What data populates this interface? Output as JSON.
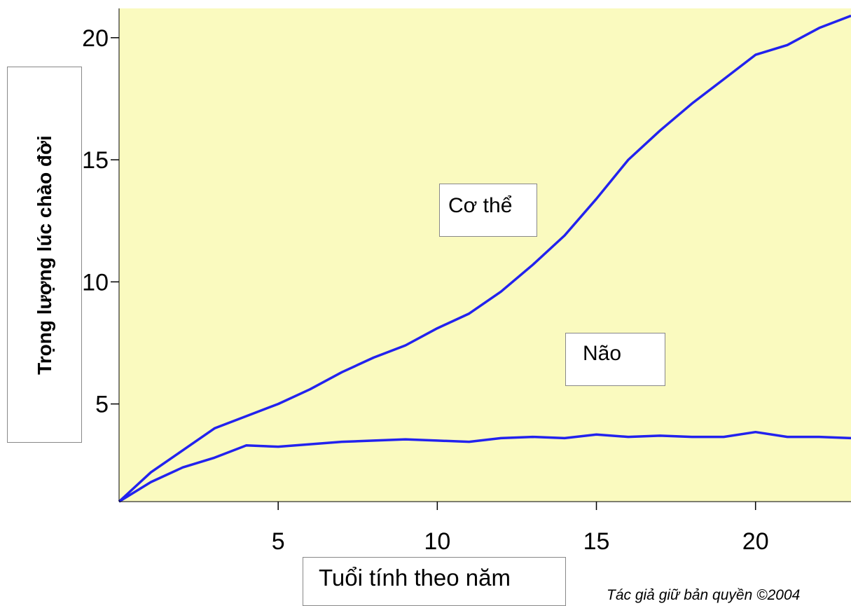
{
  "chart_data": {
    "type": "line",
    "ylabel": "Trọng lượng lúc chào đời",
    "xlabel": "Tuổi tính theo năm",
    "xlim": [
      0,
      23
    ],
    "ylim": [
      1,
      21.2
    ],
    "x_ticks": [
      5,
      10,
      15,
      20
    ],
    "y_ticks": [
      5,
      10,
      15,
      20
    ],
    "background_color": "#fafabf",
    "line_color": "#2222ee",
    "grid": false,
    "series": [
      {
        "name": "Cơ thể",
        "x": [
          0,
          1,
          2,
          3,
          4,
          5,
          6,
          7,
          8,
          9,
          10,
          11,
          12,
          13,
          14,
          15,
          16,
          17,
          18,
          19,
          20,
          21,
          22,
          23
        ],
        "values": [
          1,
          2.2,
          3.1,
          4.0,
          4.5,
          5.0,
          5.6,
          6.3,
          6.9,
          7.4,
          8.1,
          8.7,
          9.6,
          10.7,
          11.9,
          13.4,
          15.0,
          16.2,
          17.3,
          18.3,
          19.3,
          19.7,
          20.4,
          20.9
        ]
      },
      {
        "name": "Não",
        "x": [
          0,
          1,
          2,
          3,
          4,
          5,
          6,
          7,
          8,
          9,
          10,
          11,
          12,
          13,
          14,
          15,
          16,
          17,
          18,
          19,
          20,
          21,
          22,
          23
        ],
        "values": [
          1,
          1.8,
          2.4,
          2.8,
          3.3,
          3.25,
          3.35,
          3.45,
          3.5,
          3.55,
          3.5,
          3.45,
          3.6,
          3.65,
          3.6,
          3.75,
          3.65,
          3.7,
          3.65,
          3.65,
          3.85,
          3.65,
          3.65,
          3.6
        ]
      }
    ]
  },
  "copyright": "Tác giả giữ bản quyền ©2004"
}
